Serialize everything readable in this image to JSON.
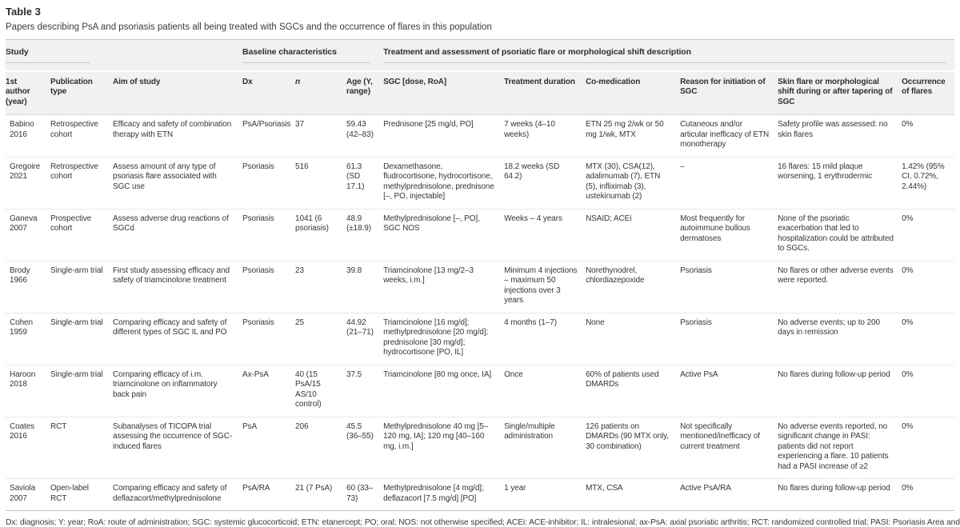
{
  "page": {
    "title": "Table 3",
    "caption": "Papers describing PsA and psoriasis patients all being treated with SGCs and the occurrence of flares in this population"
  },
  "table": {
    "groups": [
      {
        "label": "Study",
        "span": 3
      },
      {
        "label": "Baseline characteristics",
        "span": 3
      },
      {
        "label": "Treatment and assessment of psoriatic flare or morphological shift description",
        "span": 6
      }
    ],
    "columns": [
      "1st author (year)",
      "Publication type",
      "Aim of study",
      "Dx",
      "n",
      "Age (Y, range)",
      "SGC [dose, RoA]",
      "Treatment duration",
      "Co-medication",
      "Reason for initiation of SGC",
      "Skin flare or morphological shift during or after tapering of SGC",
      "Occurrence of flares"
    ],
    "column_keys": [
      "author-year",
      "publication-type",
      "aim-of-study",
      "dx",
      "n",
      "age",
      "sgc-dose-roa",
      "treatment-duration",
      "co-medication",
      "reason-initiation",
      "skin-flare-shift",
      "occurrence-of-flares"
    ],
    "rows": [
      [
        "Babino 2016",
        "Retrospective cohort",
        "Efficacy and safety of combination therapy with ETN",
        "PsA/Psoriasis",
        "37",
        "59.43 (42–83)",
        "Prednisone [25 mg/d, PO]",
        "7 weeks (4–10 weeks)",
        "ETN 25 mg 2/wk or 50 mg 1/wk, MTX",
        "Cutaneous and/or articular inefficacy of ETN monotherapy",
        "Safety profile was assessed: no skin flares",
        "0%"
      ],
      [
        "Gregoire 2021",
        "Retrospective cohort",
        "Assess amount of any type of psoriasis flare associated with SGC use",
        "Psoriasis",
        "516",
        "61.3 (SD 17.1)",
        "Dexamethasone, fludrocortisone, hydrocortisone, methylprednisolone, prednisone [–, PO, injectable]",
        "18.2 weeks (SD 64.2)",
        "MTX (30), CSA(12), adalimumab (7), ETN (5), infliximab (3), ustekinumab (2)",
        "–",
        "16 flares: 15 mild plaque worsening, 1 erythrodermic",
        "1.42% (95% CI, 0.72%, 2.44%)"
      ],
      [
        "Ganeva 2007",
        "Prospective cohort",
        "Assess adverse drug reactions of SGCd",
        "Psoriasis",
        "1041 (6 psoriasis)",
        "48.9 (±18.9)",
        "Methylprednisolone [–, PO], SGC NOS",
        "Weeks – 4 years",
        "NSAID; ACEi",
        "Most frequently for autoimmune bullous dermatoses",
        "None of the psoriatic exacerbation that led to hospitalization could be attributed to SGCs.",
        "0%"
      ],
      [
        "Brody 1966",
        "Single-arm trial",
        "First study assessing efficacy and safety of triamcinolone treatment",
        "Psoriasis",
        "23",
        "39.8",
        "Triamcinolone [13 mg/2–3 weeks, i.m.]",
        "Minimum 4 injections – maximum 50 injections over 3 years",
        "Norethynodrel, chlordiazepoxide",
        "Psoriasis",
        "No flares or other adverse events were reported.",
        "0%"
      ],
      [
        "Cohen 1959",
        "Single-arm trial",
        "Comparing efficacy and safety of different types of SGC IL and PO",
        "Psoriasis",
        "25",
        "44.92 (21–71)",
        "Triamcinolone [16 mg/d]; methylprednisolone [20 mg/d]; prednisolone [30 mg/d]; hydrocortisone [PO, IL]",
        "4 months (1–7)",
        "None",
        "Psoriasis",
        "No adverse events; up to 200 days in remission",
        "0%"
      ],
      [
        "Haroon 2018",
        "Single-arm trial",
        "Comparing efficacy of i.m. triamcinolone on inflammatory back pain",
        "Ax-PsA",
        "40 (15 PsA/15 AS/10 control)",
        "37.5",
        "Triamcinolone [80 mg once, IA]",
        "Once",
        "60% of patients used DMARDs",
        "Active PsA",
        "No flares during follow-up period",
        "0%"
      ],
      [
        "Coates 2016",
        "RCT",
        "Subanalyses of TICOPA trial assessing the occurrence of SGC-induced flares",
        "PsA",
        "206",
        "45.5 (36–55)",
        "Methylprednisolone 40 mg [5–120 mg, IA]; 120 mg [40–160 mg, i.m.]",
        "Single/multiple administration",
        "126 patients on DMARDs (90 MTX only, 30 combination)",
        "Not specifically mentioned/inefficacy of current treatment",
        "No adverse events reported, no significant change in PASI: patients did not report experiencing a flare. 10 patients had a PASI increase of ≥2",
        "0%"
      ],
      [
        "Saviola 2007",
        "Open-label RCT",
        "Comparing efficacy and safety of deflazacort/methylprednisolone",
        "PsA/RA",
        "21 (7 PsA)",
        "60 (33–73)",
        "Methylprednisolone [4 mg/d]; deflazacort [7.5 mg/d] [PO]",
        "1 year",
        "MTX, CSA",
        "Active PsA/RA",
        "No flares during follow-up period",
        "0%"
      ]
    ]
  },
  "footnote": "Dx: diagnosis; Y: year; RoA: route of administration; SGC: systemic glucocorticoid; ETN: etanercept; PO; oral; NOS: not otherwise specified; ACEi: ACE-inhibitor; IL: intralesional; ax-PsA: axial psoriatic arthritis; RCT: randomized controlled trial; PASI: Psoriasis Area and Severity Index."
}
